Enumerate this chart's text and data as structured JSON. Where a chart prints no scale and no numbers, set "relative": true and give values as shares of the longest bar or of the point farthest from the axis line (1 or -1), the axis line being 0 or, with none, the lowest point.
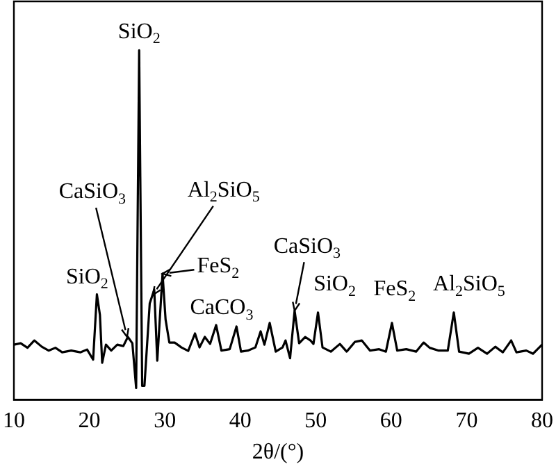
{
  "chart_data": {
    "type": "line",
    "relative": true,
    "xlabel": "2θ/(°)",
    "xlim": [
      10,
      80
    ],
    "xticks": [
      10,
      20,
      30,
      40,
      50,
      60,
      70,
      80
    ],
    "grid": false,
    "legend": false,
    "marker": "none",
    "line_style": "solid",
    "color": "#000000",
    "x": [
      10,
      10.9,
      11.8,
      12.7,
      13.7,
      14.6,
      15.5,
      16.4,
      17.6,
      18.8,
      19.7,
      20.5,
      21.0,
      21.4,
      21.7,
      22.2,
      22.9,
      23.7,
      24.5,
      25.1,
      25.7,
      26.2,
      26.6,
      27.0,
      27.3,
      28.0,
      28.6,
      29.0,
      29.7,
      30.1,
      30.6,
      31.3,
      32.2,
      33.1,
      34.0,
      34.6,
      35.3,
      36.0,
      36.8,
      37.5,
      38.6,
      39.5,
      40.1,
      41.0,
      42.0,
      42.7,
      43.2,
      43.9,
      44.7,
      45.6,
      46.0,
      46.6,
      47.2,
      47.8,
      48.6,
      49.3,
      49.7,
      50.3,
      50.9,
      52.0,
      53.2,
      54.1,
      55.2,
      56.1,
      57.2,
      58.4,
      59.3,
      60.1,
      60.8,
      62.0,
      63.3,
      64.3,
      65.1,
      66.3,
      67.5,
      68.3,
      69.0,
      70.3,
      71.5,
      72.7,
      73.8,
      74.8,
      75.9,
      76.6,
      77.9,
      78.8,
      80.0
    ],
    "values": [
      0.158,
      0.162,
      0.149,
      0.17,
      0.152,
      0.141,
      0.149,
      0.136,
      0.141,
      0.136,
      0.144,
      0.115,
      0.302,
      0.243,
      0.106,
      0.158,
      0.141,
      0.158,
      0.154,
      0.18,
      0.162,
      0.034,
      1.0,
      0.04,
      0.04,
      0.276,
      0.315,
      0.112,
      0.361,
      0.23,
      0.164,
      0.164,
      0.15,
      0.14,
      0.19,
      0.15,
      0.18,
      0.16,
      0.214,
      0.141,
      0.145,
      0.21,
      0.138,
      0.141,
      0.15,
      0.196,
      0.158,
      0.22,
      0.138,
      0.15,
      0.17,
      0.119,
      0.255,
      0.162,
      0.18,
      0.17,
      0.16,
      0.25,
      0.15,
      0.138,
      0.16,
      0.138,
      0.166,
      0.17,
      0.141,
      0.145,
      0.138,
      0.22,
      0.141,
      0.145,
      0.138,
      0.164,
      0.149,
      0.141,
      0.141,
      0.25,
      0.138,
      0.132,
      0.149,
      0.132,
      0.152,
      0.136,
      0.17,
      0.136,
      0.141,
      0.132,
      0.158
    ],
    "annotations": [
      {
        "text": "SiO$_{2}$",
        "x": 26.6,
        "y": 1.0
      },
      {
        "text": "CaSiO$_{3}$",
        "x": 25.0,
        "y": 0.18
      },
      {
        "text": "Al$_{2}$SiO$_{5}$",
        "x": 28.4,
        "y": 0.3
      },
      {
        "text": "FeS$_{2}$",
        "x": 29.7,
        "y": 0.361
      },
      {
        "text": "SiO$_{2}$",
        "x": 21.0,
        "y": 0.302
      },
      {
        "text": "CaCO$_{3}$",
        "x": 36.8,
        "y": 0.214
      },
      {
        "text": "CaSiO$_{3}$",
        "x": 47.2,
        "y": 0.255
      },
      {
        "text": "SiO$_{2}$",
        "x": 50.3,
        "y": 0.25
      },
      {
        "text": "FeS$_{2}$",
        "x": 60.1,
        "y": 0.22
      },
      {
        "text": "Al$_{2}$SiO$_{5}$",
        "x": 68.3,
        "y": 0.25
      }
    ]
  }
}
